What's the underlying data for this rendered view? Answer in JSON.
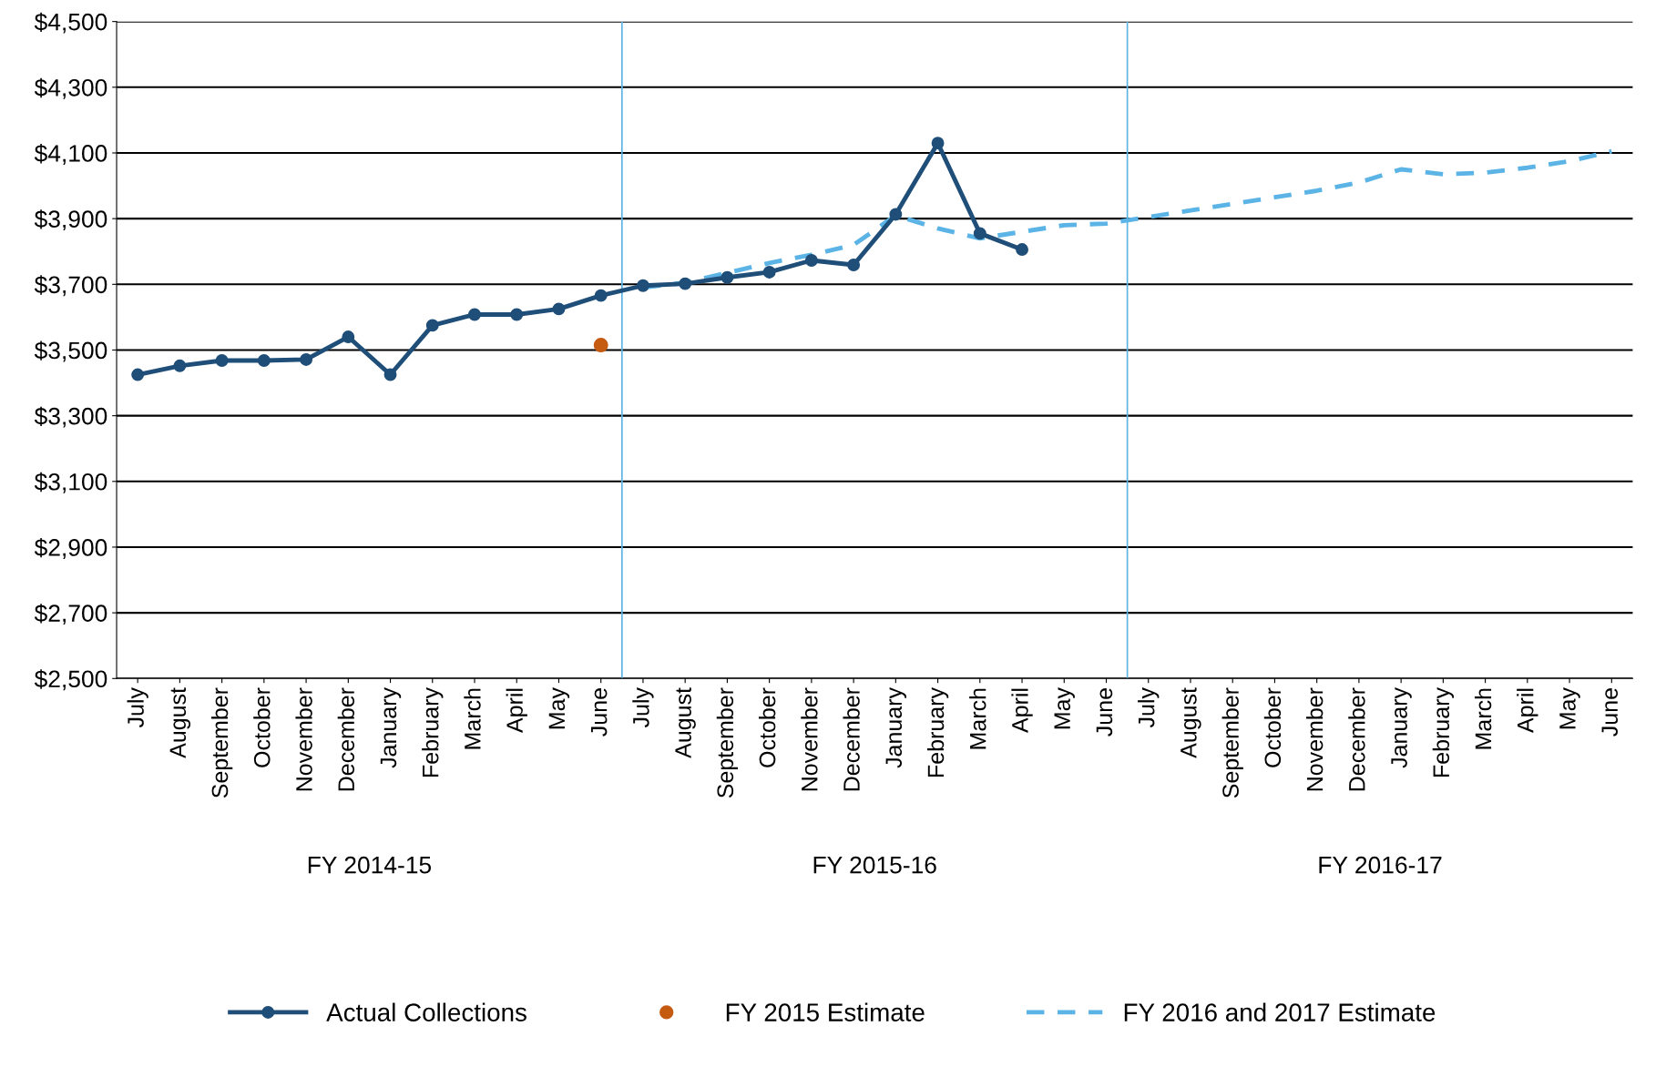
{
  "chart_data": {
    "type": "line",
    "categories": [
      "July",
      "August",
      "September",
      "October",
      "November",
      "December",
      "January",
      "February",
      "March",
      "April",
      "May",
      "June",
      "July",
      "August",
      "September",
      "October",
      "November",
      "December",
      "January",
      "February",
      "March",
      "April",
      "May",
      "June",
      "July",
      "August",
      "September",
      "October",
      "November",
      "December",
      "January",
      "February",
      "March",
      "April",
      "May",
      "June"
    ],
    "series": [
      {
        "name": "Actual Collections",
        "color": "#1f4e79",
        "marker": "circle",
        "line_style": "solid",
        "values": [
          3425,
          3452,
          3468,
          3468,
          3471,
          3540,
          3425,
          3575,
          3608,
          3608,
          3625,
          3666,
          3696,
          3702,
          3721,
          3737,
          3773,
          3759,
          3913,
          4130,
          3855,
          3806,
          null,
          null,
          null,
          null,
          null,
          null,
          null,
          null,
          null,
          null,
          null,
          null,
          null,
          null
        ]
      },
      {
        "name": "FY 2015 Estimate",
        "type": "scatter",
        "color": "#c55a11",
        "marker": "circle",
        "values": [
          null,
          null,
          null,
          null,
          null,
          null,
          null,
          null,
          null,
          null,
          null,
          3515,
          null,
          null,
          null,
          null,
          null,
          null,
          null,
          null,
          null,
          null,
          null,
          null,
          null,
          null,
          null,
          null,
          null,
          null,
          null,
          null,
          null,
          null,
          null,
          null
        ]
      },
      {
        "name": "FY 2016 and 2017 Estimate",
        "color": "#5bb4e5",
        "marker": "none",
        "line_style": "dashed",
        "values": [
          null,
          null,
          null,
          null,
          null,
          null,
          null,
          null,
          null,
          null,
          null,
          null,
          3690,
          3705,
          3735,
          3765,
          3790,
          3820,
          3910,
          3870,
          3840,
          3860,
          3880,
          3885,
          3905,
          3925,
          3945,
          3965,
          3985,
          4010,
          4050,
          4035,
          4040,
          4055,
          4075,
          4105
        ]
      }
    ],
    "ylim": [
      2500,
      4500
    ],
    "yticks": [
      {
        "value": 2500,
        "label": "$2,500"
      },
      {
        "value": 2700,
        "label": "$2,700"
      },
      {
        "value": 2900,
        "label": "$2,900"
      },
      {
        "value": 3100,
        "label": "$3,100"
      },
      {
        "value": 3300,
        "label": "$3,300"
      },
      {
        "value": 3500,
        "label": "$3,500"
      },
      {
        "value": 3700,
        "label": "$3,700"
      },
      {
        "value": 3900,
        "label": "$3,900"
      },
      {
        "value": 4100,
        "label": "$4,100"
      },
      {
        "value": 4300,
        "label": "$4,300"
      },
      {
        "value": 4500,
        "label": "$4,500"
      }
    ],
    "annotations": [
      "FY 2014-15",
      "FY 2015-16",
      "FY 2016-17"
    ],
    "grid": "y",
    "legend": "bottom"
  }
}
